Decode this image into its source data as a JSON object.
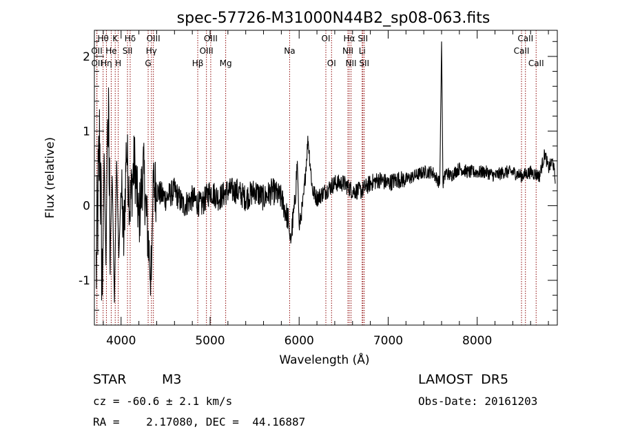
{
  "chart_data": {
    "type": "line",
    "title": "spec-57726-M31000N44B2_sp08-063.fits",
    "xlabel": "Wavelength (Å)",
    "ylabel": "Flux (relative)",
    "xlim": [
      3700,
      8900
    ],
    "ylim": [
      -1.6,
      2.35
    ],
    "xticks": [
      4000,
      5000,
      6000,
      7000,
      8000
    ],
    "yticks": [
      -1,
      0,
      1,
      2
    ],
    "grid": false,
    "line_color": "#000000",
    "marker_color": "#8b0000",
    "anchors": [
      [
        3720,
        -0.9
      ],
      [
        3760,
        0.9
      ],
      [
        3790,
        -1.2
      ],
      [
        3810,
        0.7
      ],
      [
        3830,
        -0.8
      ],
      [
        3850,
        1.4
      ],
      [
        3880,
        -0.5
      ],
      [
        3900,
        0.4
      ],
      [
        3925,
        -1.3
      ],
      [
        3950,
        0.6
      ],
      [
        3975,
        -0.7
      ],
      [
        4000,
        0.3
      ],
      [
        4030,
        -0.5
      ],
      [
        4060,
        0.8
      ],
      [
        4100,
        0.0
      ],
      [
        4150,
        0.6
      ],
      [
        4200,
        -0.2
      ],
      [
        4250,
        0.5
      ],
      [
        4300,
        -0.4
      ],
      [
        4340,
        -1.0
      ],
      [
        4360,
        0.3
      ],
      [
        4400,
        0.2
      ],
      [
        4500,
        0.1
      ],
      [
        4600,
        0.2
      ],
      [
        4700,
        0.0
      ],
      [
        4800,
        0.1
      ],
      [
        4900,
        0.0
      ],
      [
        5000,
        0.2
      ],
      [
        5100,
        0.1
      ],
      [
        5200,
        0.2
      ],
      [
        5300,
        0.2
      ],
      [
        5400,
        0.1
      ],
      [
        5500,
        0.2
      ],
      [
        5600,
        0.1
      ],
      [
        5700,
        0.2
      ],
      [
        5800,
        0.1
      ],
      [
        5880,
        -0.2
      ],
      [
        5900,
        -0.5
      ],
      [
        5950,
        0.0
      ],
      [
        5980,
        0.6
      ],
      [
        6000,
        -0.3
      ],
      [
        6050,
        0.1
      ],
      [
        6100,
        0.9
      ],
      [
        6150,
        0.2
      ],
      [
        6200,
        0.1
      ],
      [
        6300,
        0.2
      ],
      [
        6400,
        0.3
      ],
      [
        6500,
        0.3
      ],
      [
        6600,
        0.2
      ],
      [
        6700,
        0.2
      ],
      [
        6800,
        0.3
      ],
      [
        6900,
        0.35
      ],
      [
        7000,
        0.3
      ],
      [
        7100,
        0.35
      ],
      [
        7200,
        0.35
      ],
      [
        7300,
        0.4
      ],
      [
        7400,
        0.45
      ],
      [
        7500,
        0.45
      ],
      [
        7580,
        0.3
      ],
      [
        7600,
        2.2
      ],
      [
        7615,
        0.3
      ],
      [
        7650,
        0.45
      ],
      [
        7700,
        0.4
      ],
      [
        7800,
        0.5
      ],
      [
        7900,
        0.45
      ],
      [
        8000,
        0.45
      ],
      [
        8100,
        0.45
      ],
      [
        8200,
        0.4
      ],
      [
        8300,
        0.45
      ],
      [
        8400,
        0.45
      ],
      [
        8500,
        0.4
      ],
      [
        8600,
        0.45
      ],
      [
        8700,
        0.4
      ],
      [
        8760,
        0.7
      ],
      [
        8800,
        0.5
      ],
      [
        8850,
        0.6
      ],
      [
        8880,
        0.3
      ]
    ],
    "line_markers": [
      {
        "label": "Hθ",
        "x": 3798,
        "row": 0
      },
      {
        "label": "K",
        "x": 3934,
        "row": 0
      },
      {
        "label": "Hδ",
        "x": 4102,
        "row": 0
      },
      {
        "label": "OIII",
        "x": 4363,
        "row": 0
      },
      {
        "label": "OIII",
        "x": 5007,
        "row": 0
      },
      {
        "label": "OI",
        "x": 6300,
        "row": 0
      },
      {
        "label": "Hα",
        "x": 6563,
        "row": 0
      },
      {
        "label": "SII",
        "x": 6716,
        "row": 0
      },
      {
        "label": "CaII",
        "x": 8542,
        "row": 0
      },
      {
        "label": "OII",
        "x": 3727,
        "row": 1
      },
      {
        "label": "He",
        "x": 3889,
        "row": 1
      },
      {
        "label": "SII",
        "x": 4072,
        "row": 1
      },
      {
        "label": "Hγ",
        "x": 4341,
        "row": 1
      },
      {
        "label": "OIII",
        "x": 4959,
        "row": 1
      },
      {
        "label": "NII",
        "x": 6548,
        "row": 1
      },
      {
        "label": "Li",
        "x": 6708,
        "row": 1
      },
      {
        "label": "CaII",
        "x": 8498,
        "row": 1
      },
      {
        "label": "OII",
        "x": 3729,
        "row": 2
      },
      {
        "label": "Hη",
        "x": 3835,
        "row": 2
      },
      {
        "label": "H",
        "x": 3968,
        "row": 2
      },
      {
        "label": "G",
        "x": 4304,
        "row": 2
      },
      {
        "label": "Hβ",
        "x": 4861,
        "row": 2
      },
      {
        "label": "Mg",
        "x": 5175,
        "row": 2
      },
      {
        "label": "Na",
        "x": 5893,
        "row": 1
      },
      {
        "label": "OI",
        "x": 6364,
        "row": 2
      },
      {
        "label": "NII",
        "x": 6583,
        "row": 2
      },
      {
        "label": "SII",
        "x": 6731,
        "row": 2
      },
      {
        "label": "CaII",
        "x": 8662,
        "row": 2
      }
    ]
  },
  "info": {
    "class_label": "STAR",
    "subclass_label": "M3",
    "survey": "LAMOST  DR5",
    "cz_line": "cz = -60.6 ± 2.1 km/s",
    "obs_date_line": "Obs-Date: 20161203",
    "coords_line": "RA =    2.17080, DEC =  44.16887"
  }
}
